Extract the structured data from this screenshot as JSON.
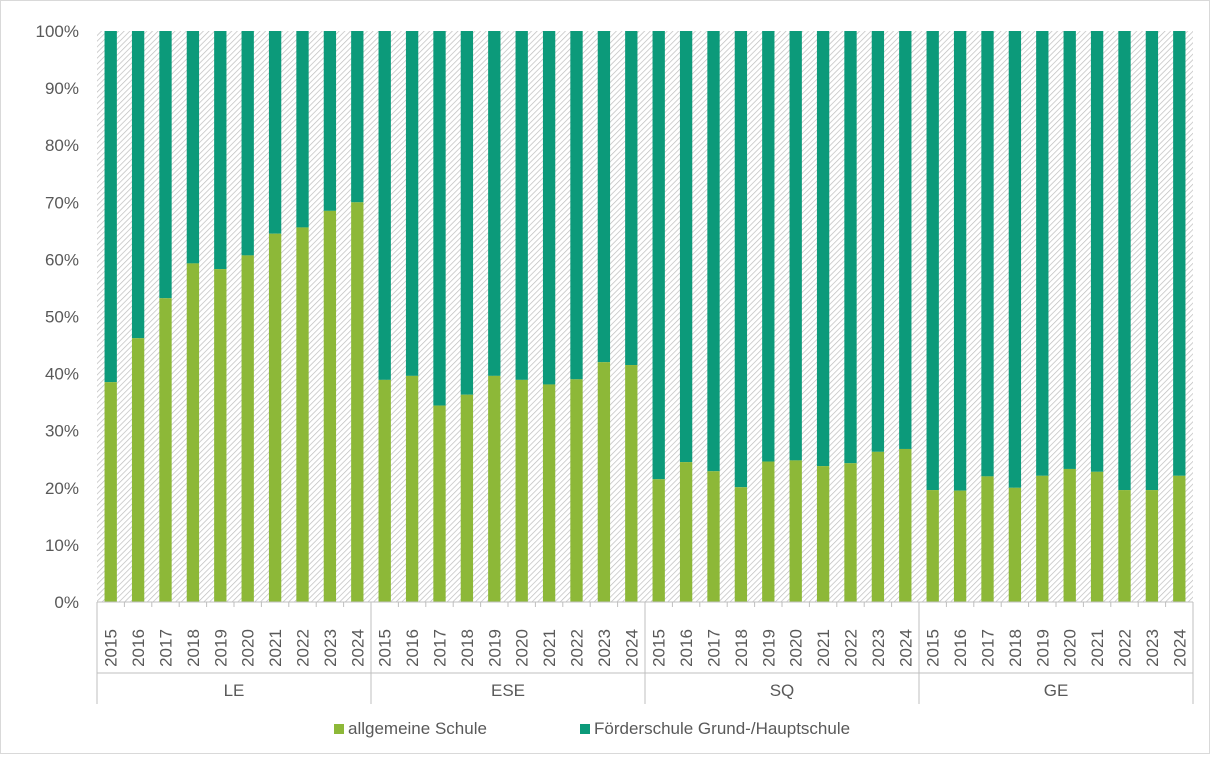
{
  "chart_data": {
    "type": "bar",
    "stacked": "percent",
    "title": "",
    "xlabel": "",
    "ylabel": "",
    "ylim": [
      0,
      100
    ],
    "y_ticks": [
      "0%",
      "10%",
      "20%",
      "30%",
      "40%",
      "50%",
      "60%",
      "70%",
      "80%",
      "90%",
      "100%"
    ],
    "grid": false,
    "legend_position": "bottom",
    "groups": [
      {
        "label": "LE",
        "years": [
          "2015",
          "2016",
          "2017",
          "2018",
          "2019",
          "2020",
          "2021",
          "2022",
          "2023",
          "2024"
        ],
        "allgemeine": [
          38.5,
          46.2,
          53.2,
          59.3,
          58.3,
          60.7,
          64.5,
          65.6,
          68.5,
          70.0
        ]
      },
      {
        "label": "ESE",
        "years": [
          "2015",
          "2016",
          "2017",
          "2018",
          "2019",
          "2020",
          "2021",
          "2022",
          "2023",
          "2024"
        ],
        "allgemeine": [
          38.9,
          39.6,
          34.4,
          36.3,
          39.6,
          38.9,
          38.1,
          39.0,
          42.0,
          41.5
        ]
      },
      {
        "label": "SQ",
        "years": [
          "2015",
          "2016",
          "2017",
          "2018",
          "2019",
          "2020",
          "2021",
          "2022",
          "2023",
          "2024"
        ],
        "allgemeine": [
          21.5,
          24.5,
          22.9,
          20.1,
          24.6,
          24.8,
          23.8,
          24.3,
          26.3,
          26.8
        ]
      },
      {
        "label": "GE",
        "years": [
          "2015",
          "2016",
          "2017",
          "2018",
          "2019",
          "2020",
          "2021",
          "2022",
          "2023",
          "2024"
        ],
        "allgemeine": [
          19.6,
          19.5,
          22.0,
          20.0,
          22.1,
          23.3,
          22.8,
          19.6,
          19.6,
          22.1
        ]
      }
    ],
    "series": [
      {
        "name": "allgemeine Schule",
        "color": "#8db838"
      },
      {
        "name": "Förderschule Grund-/Hauptschule",
        "color": "#0c9a7a"
      }
    ]
  }
}
